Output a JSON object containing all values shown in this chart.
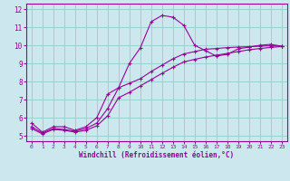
{
  "xlabel": "Windchill (Refroidissement éolien,°C)",
  "bg_color": "#cce8ee",
  "line_color": "#990099",
  "grid_color": "#99cccc",
  "xlim": [
    -0.5,
    23.5
  ],
  "ylim": [
    4.7,
    12.3
  ],
  "xticks": [
    0,
    1,
    2,
    3,
    4,
    5,
    6,
    7,
    8,
    9,
    10,
    11,
    12,
    13,
    14,
    15,
    16,
    17,
    18,
    19,
    20,
    21,
    22,
    23
  ],
  "yticks": [
    5,
    6,
    7,
    8,
    9,
    10,
    11,
    12
  ],
  "series1_x": [
    0,
    1,
    2,
    3,
    4,
    5,
    6,
    7,
    8,
    9,
    10,
    11,
    12,
    13,
    14,
    15,
    16,
    17,
    18,
    19,
    20,
    21,
    22,
    23
  ],
  "series1_y": [
    5.7,
    5.2,
    5.5,
    5.5,
    5.3,
    5.5,
    6.0,
    7.3,
    7.65,
    9.0,
    9.85,
    11.3,
    11.65,
    11.55,
    11.1,
    10.0,
    9.7,
    9.4,
    9.5,
    9.8,
    9.9,
    10.0,
    10.05,
    9.95
  ],
  "series2_x": [
    0,
    1,
    2,
    3,
    4,
    5,
    6,
    7,
    8,
    9,
    10,
    11,
    12,
    13,
    14,
    15,
    16,
    17,
    18,
    19,
    20,
    21,
    22,
    23
  ],
  "series2_y": [
    5.5,
    5.15,
    5.4,
    5.35,
    5.25,
    5.4,
    5.7,
    6.5,
    7.65,
    7.9,
    8.15,
    8.55,
    8.9,
    9.25,
    9.52,
    9.65,
    9.78,
    9.82,
    9.87,
    9.9,
    9.92,
    9.95,
    9.97,
    9.95
  ],
  "series3_x": [
    0,
    1,
    2,
    3,
    4,
    5,
    6,
    7,
    8,
    9,
    10,
    11,
    12,
    13,
    14,
    15,
    16,
    17,
    18,
    19,
    20,
    21,
    22,
    23
  ],
  "series3_y": [
    5.4,
    5.1,
    5.35,
    5.3,
    5.2,
    5.3,
    5.55,
    6.1,
    7.1,
    7.4,
    7.75,
    8.1,
    8.45,
    8.78,
    9.08,
    9.22,
    9.35,
    9.45,
    9.55,
    9.65,
    9.75,
    9.82,
    9.88,
    9.93
  ]
}
